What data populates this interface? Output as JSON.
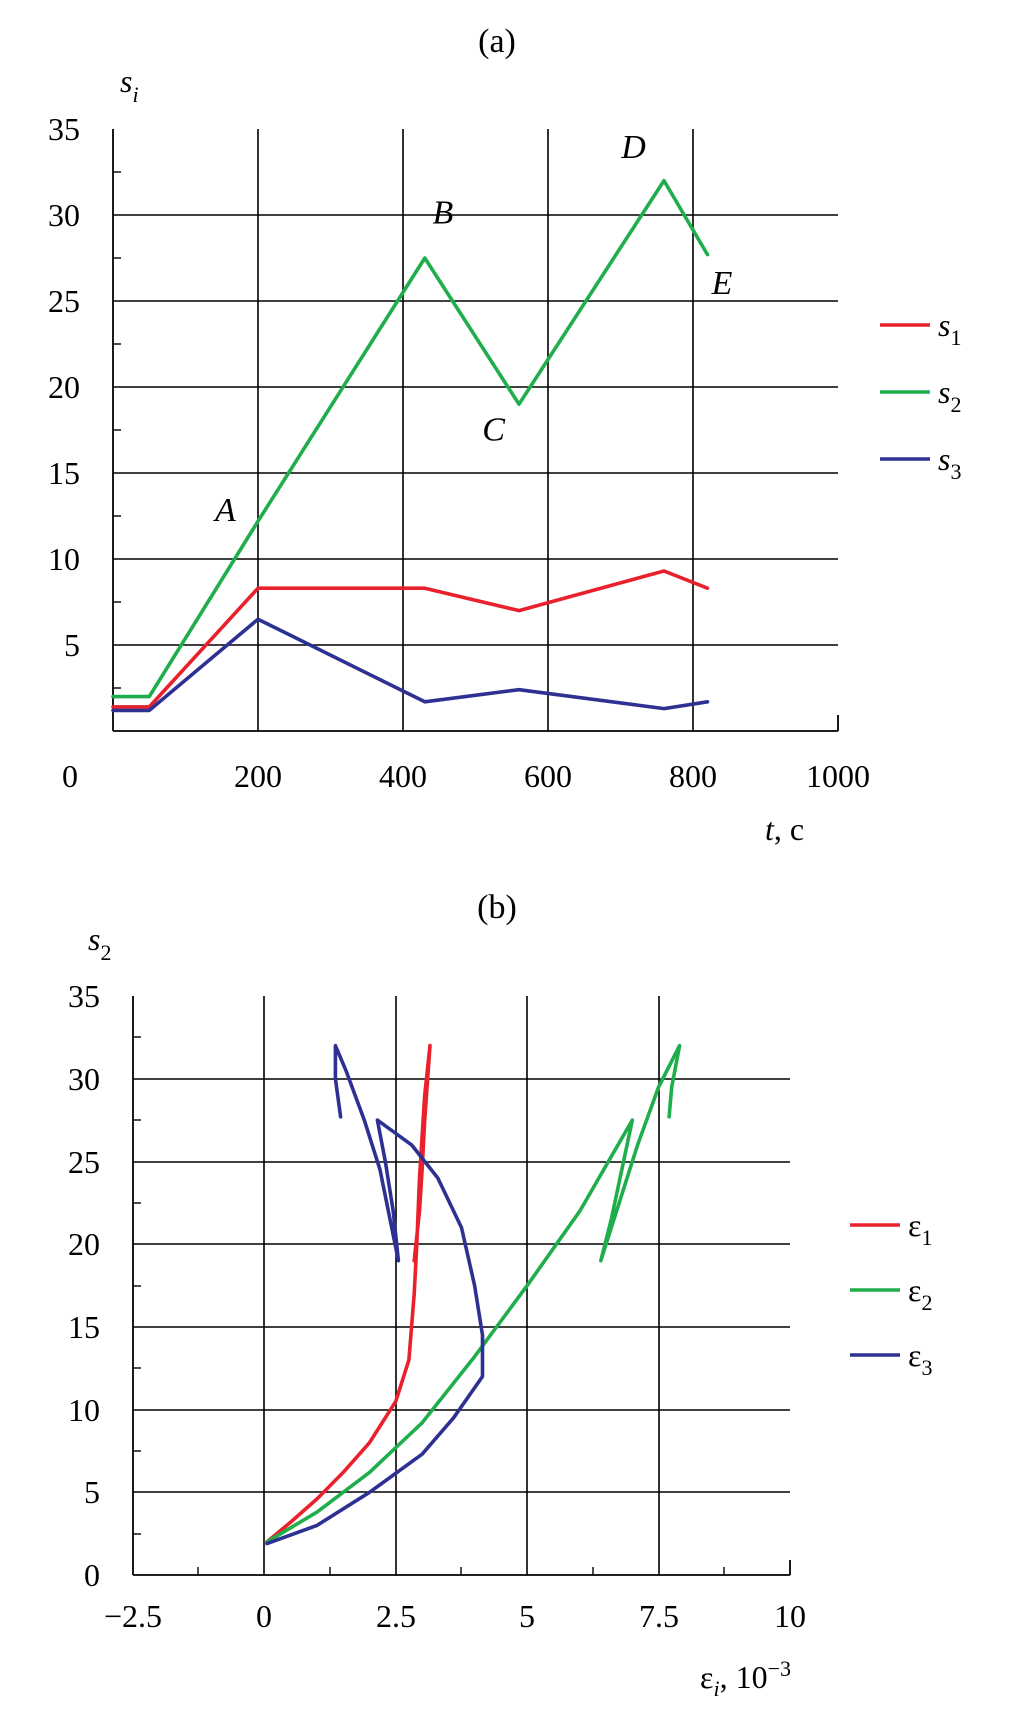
{
  "chart_data": [
    {
      "type": "line",
      "panel_label": "(a)",
      "ylabel": "s",
      "ylabel_sub": "i",
      "xlabel_var": "t",
      "xlabel_unit": ", c",
      "xlim": [
        0,
        1000
      ],
      "ylim": [
        0,
        35
      ],
      "x_ticks": [
        "0",
        "200",
        "400",
        "600",
        "800",
        "1000"
      ],
      "y_ticks": [
        "35",
        "30",
        "25",
        "20",
        "15",
        "10",
        "5"
      ],
      "grid": true,
      "legend_position": "right",
      "series": [
        {
          "name": "s",
          "name_sub": "1",
          "color": "#e8212c",
          "points": [
            [
              0,
              1.4
            ],
            [
              50,
              1.4
            ],
            [
              200,
              8.3
            ],
            [
              430,
              8.3
            ],
            [
              560,
              7.0
            ],
            [
              760,
              9.3
            ],
            [
              820,
              8.3
            ]
          ]
        },
        {
          "name": "s",
          "name_sub": "2",
          "color": "#1fae4b",
          "points": [
            [
              0,
              2.0
            ],
            [
              50,
              2.0
            ],
            [
              200,
              12.2
            ],
            [
              430,
              27.5
            ],
            [
              560,
              19.0
            ],
            [
              760,
              32.0
            ],
            [
              820,
              27.7
            ]
          ]
        },
        {
          "name": "s",
          "name_sub": "3",
          "color": "#2e3192",
          "points": [
            [
              0,
              1.2
            ],
            [
              50,
              1.2
            ],
            [
              200,
              6.5
            ],
            [
              430,
              1.7
            ],
            [
              560,
              2.4
            ],
            [
              760,
              1.3
            ],
            [
              820,
              1.7
            ]
          ]
        }
      ],
      "annotations": [
        {
          "text": "A",
          "x": 155,
          "y": 12.2
        },
        {
          "text": "B",
          "x": 455,
          "y": 29.5
        },
        {
          "text": "C",
          "x": 525,
          "y": 16.9
        },
        {
          "text": "D",
          "x": 718,
          "y": 33.3
        },
        {
          "text": "E",
          "x": 840,
          "y": 25.4
        }
      ]
    },
    {
      "type": "line",
      "panel_label": "(b)",
      "ylabel": "s",
      "ylabel_sub": "2",
      "xlabel_var": "ε",
      "xlabel_sub": "i",
      "xlabel_unit": ", 10",
      "xlabel_sup": "−3",
      "xlim": [
        -2.5,
        10
      ],
      "ylim": [
        0,
        35
      ],
      "x_ticks": [
        "−2.5",
        "0",
        "2.5",
        "5",
        "7.5",
        "10"
      ],
      "y_ticks": [
        "35",
        "30",
        "25",
        "20",
        "15",
        "10",
        "5",
        "0"
      ],
      "grid": true,
      "legend_position": "right",
      "series": [
        {
          "name": "ε",
          "name_sub": "1",
          "color": "#e8212c",
          "points": [
            [
              0.05,
              2.0
            ],
            [
              0.5,
              3.2
            ],
            [
              1.0,
              4.6
            ],
            [
              1.5,
              6.2
            ],
            [
              2.0,
              8.0
            ],
            [
              2.5,
              10.5
            ],
            [
              2.75,
              13.0
            ],
            [
              2.85,
              17.0
            ],
            [
              2.9,
              20.0
            ],
            [
              2.95,
              24.0
            ],
            [
              3.05,
              29.0
            ],
            [
              3.15,
              32.0
            ],
            [
              3.05,
              27.5
            ],
            [
              3.0,
              24.5
            ],
            [
              2.95,
              22.0
            ],
            [
              2.85,
              19.0
            ]
          ]
        },
        {
          "name": "ε",
          "name_sub": "2",
          "color": "#1fae4b",
          "points": [
            [
              0.05,
              2.0
            ],
            [
              1.0,
              3.8
            ],
            [
              2.0,
              6.2
            ],
            [
              3.0,
              9.2
            ],
            [
              4.0,
              13.2
            ],
            [
              5.0,
              17.5
            ],
            [
              6.0,
              22.0
            ],
            [
              7.0,
              27.5
            ],
            [
              6.8,
              24.5
            ],
            [
              6.6,
              21.5
            ],
            [
              6.4,
              19.0
            ],
            [
              6.75,
              22.5
            ],
            [
              7.1,
              26.0
            ],
            [
              7.5,
              29.5
            ],
            [
              7.9,
              32.0
            ],
            [
              7.75,
              29.5
            ],
            [
              7.7,
              27.7
            ]
          ]
        },
        {
          "name": "ε",
          "name_sub": "3",
          "color": "#2e3192",
          "points": [
            [
              0.05,
              1.9
            ],
            [
              1.0,
              3.0
            ],
            [
              2.0,
              5.0
            ],
            [
              3.0,
              7.3
            ],
            [
              3.6,
              9.5
            ],
            [
              4.15,
              12.0
            ],
            [
              4.15,
              14.5
            ],
            [
              4.0,
              17.5
            ],
            [
              3.75,
              21.0
            ],
            [
              3.3,
              24.0
            ],
            [
              2.8,
              26.0
            ],
            [
              2.15,
              27.5
            ],
            [
              2.3,
              25.0
            ],
            [
              2.45,
              22.0
            ],
            [
              2.55,
              19.0
            ],
            [
              2.2,
              24.5
            ],
            [
              1.9,
              27.5
            ],
            [
              1.55,
              30.5
            ],
            [
              1.35,
              32.0
            ],
            [
              1.35,
              30.0
            ],
            [
              1.45,
              27.7
            ]
          ]
        }
      ]
    }
  ]
}
